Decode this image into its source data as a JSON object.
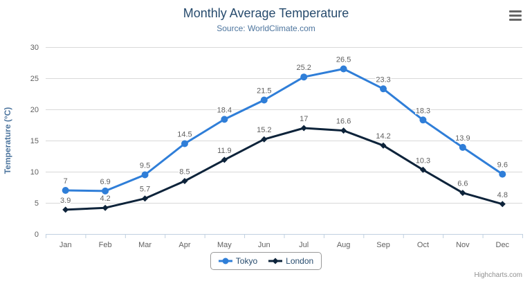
{
  "header": {
    "title": "Monthly Average Temperature",
    "subtitle": "Source: WorldClimate.com"
  },
  "credit": "Highcharts.com",
  "colors": {
    "title": "#274b6d",
    "subtitle": "#4d759e",
    "axis_title": "#4d759e",
    "axis_labels": "#606060",
    "data_labels": "#606060",
    "gridline": "#d8d8d8",
    "axis_line": "#c0d0e0",
    "legend_border": "#999999",
    "menu_icon": "#666666",
    "credit_text": "#909090",
    "tokyo": "#2f7ed8",
    "london": "#0d233a"
  },
  "chart_data": {
    "type": "line",
    "title": "Monthly Average Temperature",
    "subtitle": "Source: WorldClimate.com",
    "categories": [
      "Jan",
      "Feb",
      "Mar",
      "Apr",
      "May",
      "Jun",
      "Jul",
      "Aug",
      "Sep",
      "Oct",
      "Nov",
      "Dec"
    ],
    "series": [
      {
        "name": "Tokyo",
        "color": "#2f7ed8",
        "marker": "circle",
        "values": [
          7,
          6.9,
          9.5,
          14.5,
          18.4,
          21.5,
          25.2,
          26.5,
          23.3,
          18.3,
          13.9,
          9.6
        ]
      },
      {
        "name": "London",
        "color": "#0d233a",
        "marker": "diamond",
        "values": [
          3.9,
          4.2,
          5.7,
          8.5,
          11.9,
          15.2,
          17,
          16.6,
          14.2,
          10.3,
          6.6,
          4.8
        ]
      }
    ],
    "xlabel": "",
    "ylabel": "Temperature (°C)",
    "ylim": [
      0,
      30
    ],
    "ytick_step": 5,
    "yticks": [
      0,
      5,
      10,
      15,
      20,
      25,
      30
    ],
    "grid": true,
    "data_labels": true,
    "legend_position": "bottom"
  }
}
